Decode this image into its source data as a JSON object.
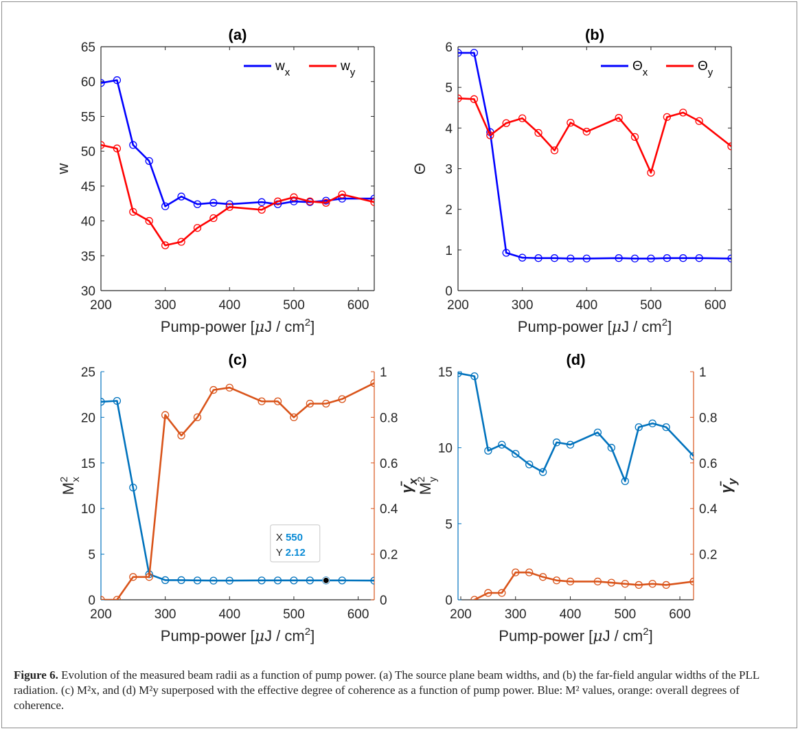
{
  "chart_data": [
    {
      "type": "line",
      "title": "(a)",
      "xlabel": "Pump-power [μJ / cm²]",
      "ylabel": "w",
      "xlim": [
        200,
        625
      ],
      "ylim": [
        30,
        65
      ],
      "xticks": [
        200,
        300,
        400,
        500,
        600
      ],
      "yticks": [
        30,
        35,
        40,
        45,
        50,
        55,
        60,
        65
      ],
      "legend_position": "top-right",
      "series": [
        {
          "name": "w_x",
          "color": "#0000ff",
          "x": [
            200,
            225,
            250,
            275,
            300,
            325,
            350,
            375,
            400,
            450,
            475,
            500,
            525,
            550,
            575,
            625
          ],
          "y": [
            59.8,
            60.2,
            50.9,
            48.6,
            42.1,
            43.5,
            42.4,
            42.6,
            42.4,
            42.7,
            42.4,
            42.8,
            42.7,
            42.9,
            43.2,
            43.2
          ]
        },
        {
          "name": "w_y",
          "color": "#ff0000",
          "x": [
            200,
            225,
            250,
            275,
            300,
            325,
            350,
            375,
            400,
            450,
            475,
            500,
            525,
            550,
            575,
            625
          ],
          "y": [
            50.9,
            50.4,
            41.3,
            40.0,
            36.5,
            37.0,
            39.0,
            40.4,
            42.0,
            41.6,
            42.8,
            43.4,
            42.8,
            42.6,
            43.8,
            42.7
          ]
        }
      ]
    },
    {
      "type": "line",
      "title": "(b)",
      "xlabel": "Pump-power [μJ / cm²]",
      "ylabel": "Θ",
      "xlim": [
        200,
        625
      ],
      "ylim": [
        0,
        6
      ],
      "xticks": [
        200,
        300,
        400,
        500,
        600
      ],
      "yticks": [
        0,
        1,
        2,
        3,
        4,
        5,
        6
      ],
      "legend_position": "top-right",
      "series": [
        {
          "name": "Θ_x",
          "color": "#0000ff",
          "x": [
            200,
            225,
            250,
            275,
            300,
            325,
            350,
            375,
            400,
            450,
            475,
            500,
            525,
            550,
            575,
            625
          ],
          "y": [
            5.85,
            5.85,
            3.9,
            0.93,
            0.81,
            0.8,
            0.8,
            0.79,
            0.79,
            0.8,
            0.79,
            0.79,
            0.8,
            0.8,
            0.8,
            0.79
          ]
        },
        {
          "name": "Θ_y",
          "color": "#ff0000",
          "x": [
            200,
            225,
            250,
            275,
            300,
            325,
            350,
            375,
            400,
            450,
            475,
            500,
            525,
            550,
            575,
            625
          ],
          "y": [
            4.73,
            4.71,
            3.82,
            4.12,
            4.24,
            3.88,
            3.45,
            4.13,
            3.91,
            4.25,
            3.78,
            2.9,
            4.27,
            4.38,
            4.17,
            3.55
          ]
        }
      ]
    },
    {
      "type": "line",
      "title": "(c)",
      "xlabel": "Pump-power [μJ / cm²]",
      "ylabel_left": "M²x",
      "ylabel_right": "γ̄x",
      "xlim": [
        200,
        625
      ],
      "ylim_left": [
        0,
        25
      ],
      "ylim_right": [
        0,
        1
      ],
      "xticks": [
        200,
        300,
        400,
        500,
        600
      ],
      "yticks_left": [
        0,
        5,
        10,
        15,
        20,
        25
      ],
      "yticks_right": [
        0,
        0.2,
        0.4,
        0.6,
        0.8,
        1
      ],
      "series": [
        {
          "axis": "left",
          "color": "#0072bd",
          "x": [
            200,
            225,
            250,
            275,
            300,
            325,
            350,
            375,
            400,
            450,
            475,
            500,
            525,
            550,
            575,
            625
          ],
          "y": [
            21.7,
            21.8,
            12.3,
            2.8,
            2.15,
            2.15,
            2.12,
            2.1,
            2.1,
            2.12,
            2.12,
            2.12,
            2.12,
            2.12,
            2.12,
            2.1
          ]
        },
        {
          "axis": "right",
          "color": "#d95319",
          "x": [
            200,
            225,
            250,
            275,
            300,
            325,
            350,
            375,
            400,
            450,
            475,
            500,
            525,
            550,
            575,
            625
          ],
          "y": [
            0,
            0,
            0.1,
            0.1,
            0.81,
            0.72,
            0.8,
            0.92,
            0.93,
            0.87,
            0.87,
            0.8,
            0.86,
            0.86,
            0.88,
            0.95
          ]
        }
      ],
      "datatip": {
        "x_label": "X",
        "x_value": "550",
        "y_label": "Y",
        "y_value": "2.12"
      }
    },
    {
      "type": "line",
      "title": "(d)",
      "xlabel": "Pump-power [μJ / cm²]",
      "ylabel_left": "M²y",
      "ylabel_right": "γ̄y",
      "xlim": [
        195,
        625
      ],
      "ylim_left": [
        0,
        15
      ],
      "ylim_right": [
        0,
        1
      ],
      "xticks": [
        200,
        300,
        400,
        500,
        600
      ],
      "yticks_left": [
        0,
        5,
        10,
        15
      ],
      "yticks_right": [
        0.2,
        0.4,
        0.6,
        0.8,
        1
      ],
      "series": [
        {
          "axis": "left",
          "color": "#0072bd",
          "x": [
            195,
            225,
            250,
            275,
            300,
            325,
            350,
            375,
            400,
            450,
            475,
            500,
            525,
            550,
            575,
            625
          ],
          "y": [
            14.9,
            14.7,
            9.8,
            10.2,
            9.6,
            8.9,
            8.4,
            10.35,
            10.2,
            11.0,
            10.0,
            7.8,
            11.35,
            11.6,
            11.35,
            9.45
          ]
        },
        {
          "axis": "right",
          "color": "#d95319",
          "x": [
            195,
            225,
            250,
            275,
            300,
            325,
            350,
            375,
            400,
            450,
            475,
            500,
            525,
            550,
            575,
            625
          ],
          "y": [
            -0.03,
            0,
            0.03,
            0.03,
            0.12,
            0.12,
            0.1,
            0.085,
            0.08,
            0.08,
            0.075,
            0.07,
            0.065,
            0.07,
            0.065,
            0.08
          ]
        }
      ]
    }
  ],
  "caption": {
    "label": "Figure 6.",
    "text": "Evolution of the measured beam radii as a function of pump power. (a) The source plane beam widths, and (b) the far-field angular widths of the PLL radiation. (c) M²x, and (d) M²y superposed with the effective degree of coherence as a function of pump power. Blue: M² values, orange: overall degrees of coherence."
  }
}
